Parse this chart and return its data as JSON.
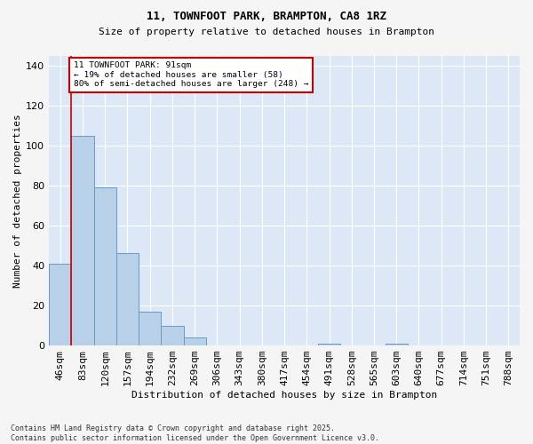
{
  "title_line1": "11, TOWNFOOT PARK, BRAMPTON, CA8 1RZ",
  "title_line2": "Size of property relative to detached houses in Brampton",
  "xlabel": "Distribution of detached houses by size in Brampton",
  "ylabel": "Number of detached properties",
  "categories": [
    "46sqm",
    "83sqm",
    "120sqm",
    "157sqm",
    "194sqm",
    "232sqm",
    "269sqm",
    "306sqm",
    "343sqm",
    "380sqm",
    "417sqm",
    "454sqm",
    "491sqm",
    "528sqm",
    "565sqm",
    "603sqm",
    "640sqm",
    "677sqm",
    "714sqm",
    "751sqm",
    "788sqm"
  ],
  "values": [
    41,
    105,
    79,
    46,
    17,
    10,
    4,
    0,
    0,
    0,
    0,
    0,
    1,
    0,
    0,
    1,
    0,
    0,
    0,
    0,
    0
  ],
  "bar_color": "#b8d0e8",
  "bar_edge_color": "#6699cc",
  "plot_bg_color": "#dce8f5",
  "fig_bg_color": "#f5f5f5",
  "grid_color": "#ffffff",
  "red_line_x": 0.5,
  "annotation_text": "11 TOWNFOOT PARK: 91sqm\n← 19% of detached houses are smaller (58)\n80% of semi-detached houses are larger (248) →",
  "annotation_box_facecolor": "#ffffff",
  "annotation_box_edgecolor": "#cc0000",
  "ylim": [
    0,
    145
  ],
  "yticks": [
    0,
    20,
    40,
    60,
    80,
    100,
    120,
    140
  ],
  "title_fontsize": 9,
  "subtitle_fontsize": 8,
  "footer_line1": "Contains HM Land Registry data © Crown copyright and database right 2025.",
  "footer_line2": "Contains public sector information licensed under the Open Government Licence v3.0."
}
